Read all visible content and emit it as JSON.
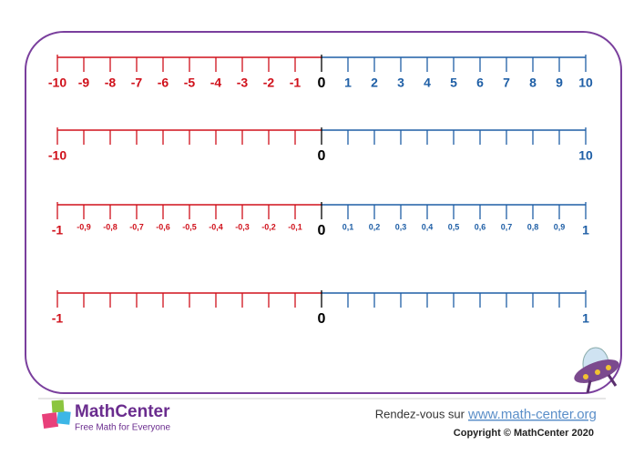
{
  "number_lines": [
    {
      "labels": [
        "-10",
        "-9",
        "-8",
        "-7",
        "-6",
        "-5",
        "-4",
        "-3",
        "-2",
        "-1",
        "0",
        "1",
        "2",
        "3",
        "4",
        "5",
        "6",
        "7",
        "8",
        "9",
        "10"
      ]
    },
    {
      "labels": [
        "-10",
        null,
        null,
        null,
        null,
        null,
        null,
        null,
        null,
        null,
        "0",
        null,
        null,
        null,
        null,
        null,
        null,
        null,
        null,
        null,
        "10"
      ]
    },
    {
      "labels": [
        "-1",
        "-0,9",
        "-0,8",
        "-0,7",
        "-0,6",
        "-0,5",
        "-0,4",
        "-0,3",
        "-0,2",
        "-0,1",
        "0",
        "0,1",
        "0,2",
        "0,3",
        "0,4",
        "0,5",
        "0,6",
        "0,7",
        "0,8",
        "0,9",
        "1"
      ]
    },
    {
      "labels": [
        "-1",
        null,
        null,
        null,
        null,
        null,
        null,
        null,
        null,
        null,
        "0",
        null,
        null,
        null,
        null,
        null,
        null,
        null,
        null,
        null,
        "1"
      ]
    }
  ],
  "footer": {
    "brand": "MathCenter",
    "tagline": "Free Math for Everyone",
    "visit": "Rendez-vous sur",
    "url": "www.math-center.org",
    "copyright": "Copyright © MathCenter 2020"
  }
}
